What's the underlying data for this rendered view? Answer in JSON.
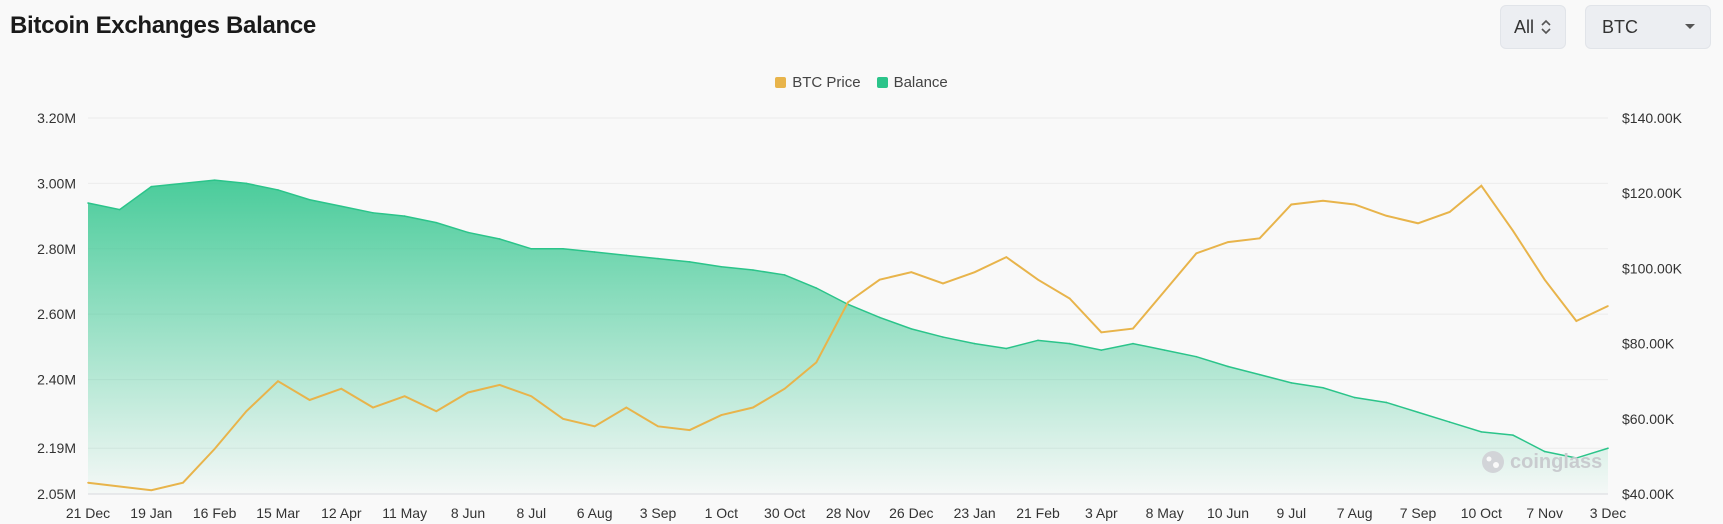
{
  "title": "Bitcoin Exchanges Balance",
  "controls": {
    "range_label": "All",
    "unit_label": "BTC"
  },
  "watermark": "coinglass",
  "chart_data": {
    "type": "area",
    "title": "Bitcoin Exchanges Balance",
    "grid": true,
    "legend_position": "top-center",
    "legend": [
      {
        "name": "BTC Price",
        "color": "#e8b44b"
      },
      {
        "name": "Balance",
        "color": "#2bc48a"
      }
    ],
    "x_ticks": [
      "21 Dec",
      "19 Jan",
      "16 Feb",
      "15 Mar",
      "12 Apr",
      "11 May",
      "8 Jun",
      "8 Jul",
      "6 Aug",
      "3 Sep",
      "1 Oct",
      "30 Oct",
      "28 Nov",
      "26 Dec",
      "23 Jan",
      "21 Feb",
      "3 Apr",
      "8 May",
      "10 Jun",
      "9 Jul",
      "7 Aug",
      "7 Sep",
      "10 Oct",
      "7 Nov",
      "3 Dec"
    ],
    "y_left_ticks": [
      "3.20M",
      "3.00M",
      "2.80M",
      "2.60M",
      "2.40M",
      "2.19M",
      "2.05M"
    ],
    "y_right_ticks": [
      "$140.00K",
      "$120.00K",
      "$100.00K",
      "$80.00K",
      "$60.00K",
      "$40.00K"
    ],
    "y_left_range": [
      2050000,
      3200000
    ],
    "y_right_range": [
      40000,
      140000
    ],
    "x_range": [
      0,
      24
    ],
    "series": [
      {
        "name": "Balance",
        "axis": "left",
        "color": "#2bc48a",
        "points": [
          [
            0,
            2940000
          ],
          [
            0.5,
            2920000
          ],
          [
            1,
            2990000
          ],
          [
            1.5,
            3000000
          ],
          [
            2,
            3010000
          ],
          [
            2.5,
            3000000
          ],
          [
            3,
            2980000
          ],
          [
            3.5,
            2950000
          ],
          [
            4,
            2930000
          ],
          [
            4.5,
            2910000
          ],
          [
            5,
            2900000
          ],
          [
            5.5,
            2880000
          ],
          [
            6,
            2850000
          ],
          [
            6.5,
            2830000
          ],
          [
            7,
            2800000
          ],
          [
            7.5,
            2800000
          ],
          [
            8,
            2790000
          ],
          [
            8.5,
            2780000
          ],
          [
            9,
            2770000
          ],
          [
            9.5,
            2760000
          ],
          [
            10,
            2745000
          ],
          [
            10.5,
            2735000
          ],
          [
            11,
            2720000
          ],
          [
            11.5,
            2680000
          ],
          [
            12,
            2630000
          ],
          [
            12.5,
            2590000
          ],
          [
            13,
            2555000
          ],
          [
            13.5,
            2530000
          ],
          [
            14,
            2510000
          ],
          [
            14.5,
            2495000
          ],
          [
            15,
            2520000
          ],
          [
            15.5,
            2510000
          ],
          [
            16,
            2490000
          ],
          [
            16.5,
            2510000
          ],
          [
            17,
            2490000
          ],
          [
            17.5,
            2470000
          ],
          [
            18,
            2440000
          ],
          [
            18.5,
            2415000
          ],
          [
            19,
            2390000
          ],
          [
            19.5,
            2375000
          ],
          [
            20,
            2345000
          ],
          [
            20.5,
            2330000
          ],
          [
            21,
            2300000
          ],
          [
            21.5,
            2270000
          ],
          [
            22,
            2240000
          ],
          [
            22.5,
            2230000
          ],
          [
            23,
            2180000
          ],
          [
            23.5,
            2160000
          ],
          [
            24,
            2190000
          ]
        ]
      },
      {
        "name": "BTC Price",
        "axis": "right",
        "color": "#e8b44b",
        "points": [
          [
            0,
            43000
          ],
          [
            0.5,
            42000
          ],
          [
            1,
            41000
          ],
          [
            1.5,
            43000
          ],
          [
            2,
            52000
          ],
          [
            2.5,
            62000
          ],
          [
            3,
            70000
          ],
          [
            3.5,
            65000
          ],
          [
            4,
            68000
          ],
          [
            4.5,
            63000
          ],
          [
            5,
            66000
          ],
          [
            5.5,
            62000
          ],
          [
            6,
            67000
          ],
          [
            6.5,
            69000
          ],
          [
            7,
            66000
          ],
          [
            7.5,
            60000
          ],
          [
            8,
            58000
          ],
          [
            8.5,
            63000
          ],
          [
            9,
            58000
          ],
          [
            9.5,
            57000
          ],
          [
            10,
            61000
          ],
          [
            10.5,
            63000
          ],
          [
            11,
            68000
          ],
          [
            11.5,
            75000
          ],
          [
            12,
            91000
          ],
          [
            12.5,
            97000
          ],
          [
            13,
            99000
          ],
          [
            13.5,
            96000
          ],
          [
            14,
            99000
          ],
          [
            14.5,
            103000
          ],
          [
            15,
            97000
          ],
          [
            15.5,
            92000
          ],
          [
            16,
            83000
          ],
          [
            16.5,
            84000
          ],
          [
            17,
            94000
          ],
          [
            17.5,
            104000
          ],
          [
            18,
            107000
          ],
          [
            18.5,
            108000
          ],
          [
            19,
            117000
          ],
          [
            19.5,
            118000
          ],
          [
            20,
            117000
          ],
          [
            20.5,
            114000
          ],
          [
            21,
            112000
          ],
          [
            21.5,
            115000
          ],
          [
            22,
            122000
          ],
          [
            22.5,
            110000
          ],
          [
            23,
            97000
          ],
          [
            23.5,
            86000
          ],
          [
            24,
            90000
          ]
        ]
      }
    ]
  }
}
